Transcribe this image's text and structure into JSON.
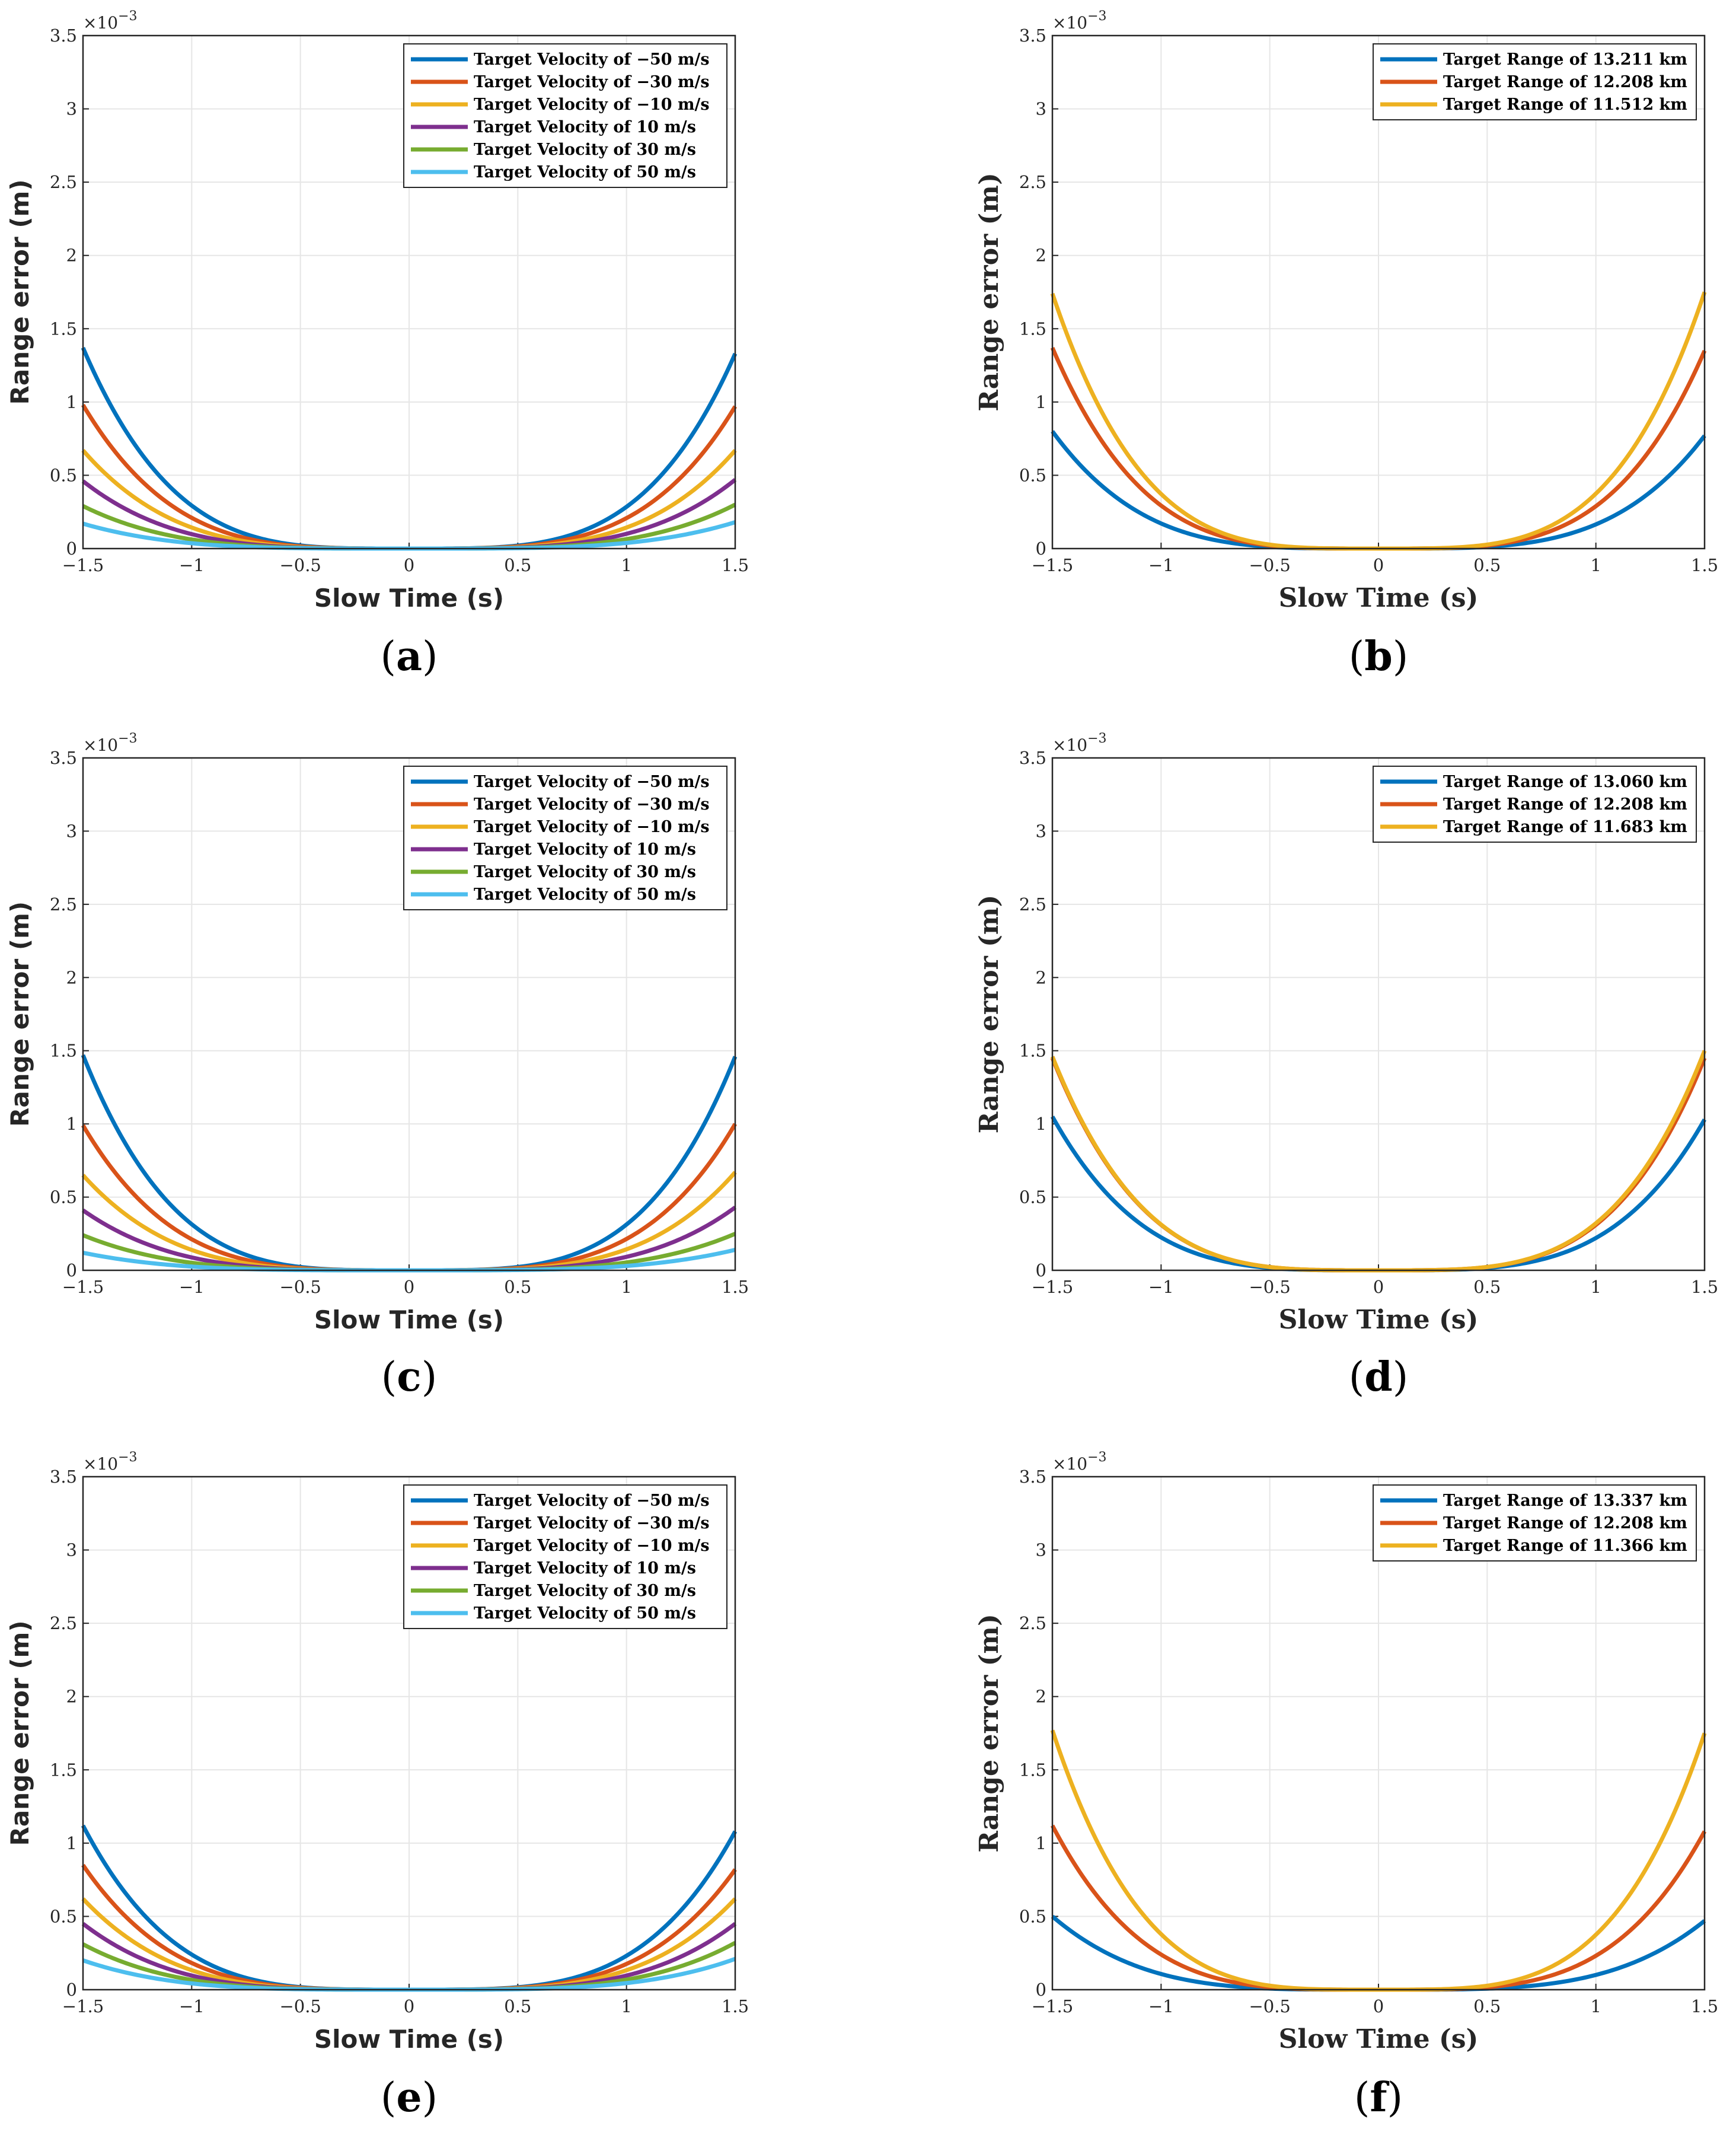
{
  "figure": {
    "colors": {
      "blue": "#0072BD",
      "orange": "#D95319",
      "yellow": "#EDB120",
      "purple": "#7E2F8E",
      "green": "#77AC30",
      "cyan": "#4DBEEE",
      "grid": "#e6e6e6",
      "axis": "#262626"
    }
  },
  "chart_data": [
    {
      "panel": "a",
      "label_open": "(",
      "label_letter": "a",
      "label_close": ")",
      "type": "line",
      "xlabel": "Slow Time (s)",
      "ylabel": "Range error (m)",
      "exponent_base": "×10",
      "exponent_power": "−3",
      "xlim": [
        -1.5,
        1.5
      ],
      "ylim": [
        0,
        3.5
      ],
      "xticks": [
        "−1.5",
        "−1",
        "−0.5",
        "0",
        "0.5",
        "1",
        "1.5"
      ],
      "yticks": [
        "0",
        "0.5",
        "1",
        "1.5",
        "2",
        "2.5",
        "3",
        "3.5"
      ],
      "legend_position": "top-right",
      "series": [
        {
          "name": "Target Velocity of −50 m/s",
          "color": "#0072BD",
          "at_minus": 1.37,
          "at_plus": 1.33
        },
        {
          "name": "Target Velocity of −30 m/s",
          "color": "#D95319",
          "at_minus": 0.98,
          "at_plus": 0.97
        },
        {
          "name": "Target Velocity of −10 m/s",
          "color": "#EDB120",
          "at_minus": 0.67,
          "at_plus": 0.67
        },
        {
          "name": "Target Velocity of 10 m/s",
          "color": "#7E2F8E",
          "at_minus": 0.46,
          "at_plus": 0.47
        },
        {
          "name": "Target Velocity of 30 m/s",
          "color": "#77AC30",
          "at_minus": 0.29,
          "at_plus": 0.3
        },
        {
          "name": "Target Velocity of 50 m/s",
          "color": "#4DBEEE",
          "at_minus": 0.17,
          "at_plus": 0.18
        }
      ]
    },
    {
      "panel": "b",
      "label_open": "(",
      "label_letter": "b",
      "label_close": ")",
      "type": "line",
      "xlabel": "Slow Time (s)",
      "ylabel": "Range error (m)",
      "exponent_base": "×10",
      "exponent_power": "−3",
      "xlim": [
        -1.5,
        1.5
      ],
      "ylim": [
        0,
        3.5
      ],
      "xticks": [
        "−1.5",
        "−1",
        "−0.5",
        "0",
        "0.5",
        "1",
        "1.5"
      ],
      "yticks": [
        "0",
        "0.5",
        "1",
        "1.5",
        "2",
        "2.5",
        "3",
        "3.5"
      ],
      "legend_position": "top-right",
      "series": [
        {
          "name": "Target Range of 13.211 km",
          "color": "#0072BD",
          "at_minus": 0.8,
          "at_plus": 0.77
        },
        {
          "name": "Target Range of 12.208 km",
          "color": "#D95319",
          "at_minus": 1.37,
          "at_plus": 1.35
        },
        {
          "name": "Target Range of 11.512 km",
          "color": "#EDB120",
          "at_minus": 1.74,
          "at_plus": 1.75
        }
      ]
    },
    {
      "panel": "c",
      "label_open": "(",
      "label_letter": "c",
      "label_close": ")",
      "type": "line",
      "xlabel": "Slow Time (s)",
      "ylabel": "Range error (m)",
      "exponent_base": "×10",
      "exponent_power": "−3",
      "xlim": [
        -1.5,
        1.5
      ],
      "ylim": [
        0,
        3.5
      ],
      "xticks": [
        "−1.5",
        "−1",
        "−0.5",
        "0",
        "0.5",
        "1",
        "1.5"
      ],
      "yticks": [
        "0",
        "0.5",
        "1",
        "1.5",
        "2",
        "2.5",
        "3",
        "3.5"
      ],
      "legend_position": "top-right",
      "series": [
        {
          "name": "Target Velocity of −50 m/s",
          "color": "#0072BD",
          "at_minus": 1.47,
          "at_plus": 1.46
        },
        {
          "name": "Target Velocity of −30 m/s",
          "color": "#D95319",
          "at_minus": 0.99,
          "at_plus": 1.0
        },
        {
          "name": "Target Velocity of −10 m/s",
          "color": "#EDB120",
          "at_minus": 0.65,
          "at_plus": 0.67
        },
        {
          "name": "Target Velocity of 10 m/s",
          "color": "#7E2F8E",
          "at_minus": 0.41,
          "at_plus": 0.43
        },
        {
          "name": "Target Velocity of 30 m/s",
          "color": "#77AC30",
          "at_minus": 0.24,
          "at_plus": 0.25
        },
        {
          "name": "Target Velocity of 50 m/s",
          "color": "#4DBEEE",
          "at_minus": 0.12,
          "at_plus": 0.14
        }
      ]
    },
    {
      "panel": "d",
      "label_open": "(",
      "label_letter": "d",
      "label_close": ")",
      "type": "line",
      "xlabel": "Slow Time (s)",
      "ylabel": "Range error (m)",
      "exponent_base": "×10",
      "exponent_power": "−3",
      "xlim": [
        -1.5,
        1.5
      ],
      "ylim": [
        0,
        3.5
      ],
      "xticks": [
        "−1.5",
        "−1",
        "−0.5",
        "0",
        "0.5",
        "1",
        "1.5"
      ],
      "yticks": [
        "0",
        "0.5",
        "1",
        "1.5",
        "2",
        "2.5",
        "3",
        "3.5"
      ],
      "legend_position": "top-right",
      "series": [
        {
          "name": "Target Range of 13.060 km",
          "color": "#0072BD",
          "at_minus": 1.05,
          "at_plus": 1.03
        },
        {
          "name": "Target Range of 12.208 km",
          "color": "#D95319",
          "at_minus": 1.45,
          "at_plus": 1.45
        },
        {
          "name": "Target Range of 11.683 km",
          "color": "#EDB120",
          "at_minus": 1.46,
          "at_plus": 1.5
        }
      ]
    },
    {
      "panel": "e",
      "label_open": "(",
      "label_letter": "e",
      "label_close": ")",
      "type": "line",
      "xlabel": "Slow Time (s)",
      "ylabel": "Range error (m)",
      "exponent_base": "×10",
      "exponent_power": "−3",
      "xlim": [
        -1.5,
        1.5
      ],
      "ylim": [
        0,
        3.5
      ],
      "xticks": [
        "−1.5",
        "−1",
        "−0.5",
        "0",
        "0.5",
        "1",
        "1.5"
      ],
      "yticks": [
        "0",
        "0.5",
        "1",
        "1.5",
        "2",
        "2.5",
        "3",
        "3.5"
      ],
      "legend_position": "top-right",
      "series": [
        {
          "name": "Target Velocity of −50 m/s",
          "color": "#0072BD",
          "at_minus": 1.12,
          "at_plus": 1.08
        },
        {
          "name": "Target Velocity of −30 m/s",
          "color": "#D95319",
          "at_minus": 0.85,
          "at_plus": 0.82
        },
        {
          "name": "Target Velocity of −10 m/s",
          "color": "#EDB120",
          "at_minus": 0.62,
          "at_plus": 0.62
        },
        {
          "name": "Target Velocity of 10 m/s",
          "color": "#7E2F8E",
          "at_minus": 0.45,
          "at_plus": 0.45
        },
        {
          "name": "Target Velocity of 30 m/s",
          "color": "#77AC30",
          "at_minus": 0.31,
          "at_plus": 0.32
        },
        {
          "name": "Target Velocity of 50 m/s",
          "color": "#4DBEEE",
          "at_minus": 0.2,
          "at_plus": 0.21
        }
      ]
    },
    {
      "panel": "f",
      "label_open": "(",
      "label_letter": "f",
      "label_close": ")",
      "type": "line",
      "xlabel": "Slow Time (s)",
      "ylabel": "Range error (m)",
      "exponent_base": "×10",
      "exponent_power": "−3",
      "xlim": [
        -1.5,
        1.5
      ],
      "ylim": [
        0,
        3.5
      ],
      "xticks": [
        "−1.5",
        "−1",
        "−0.5",
        "0",
        "0.5",
        "1",
        "1.5"
      ],
      "yticks": [
        "0",
        "0.5",
        "1",
        "1.5",
        "2",
        "2.5",
        "3",
        "3.5"
      ],
      "legend_position": "top-right",
      "series": [
        {
          "name": "Target Range of 13.337 km",
          "color": "#0072BD",
          "at_minus": 0.5,
          "at_plus": 0.47
        },
        {
          "name": "Target Range of 12.208 km",
          "color": "#D95319",
          "at_minus": 1.12,
          "at_plus": 1.08
        },
        {
          "name": "Target Range of 11.366 km",
          "color": "#EDB120",
          "at_minus": 1.77,
          "at_plus": 1.75
        }
      ]
    }
  ]
}
